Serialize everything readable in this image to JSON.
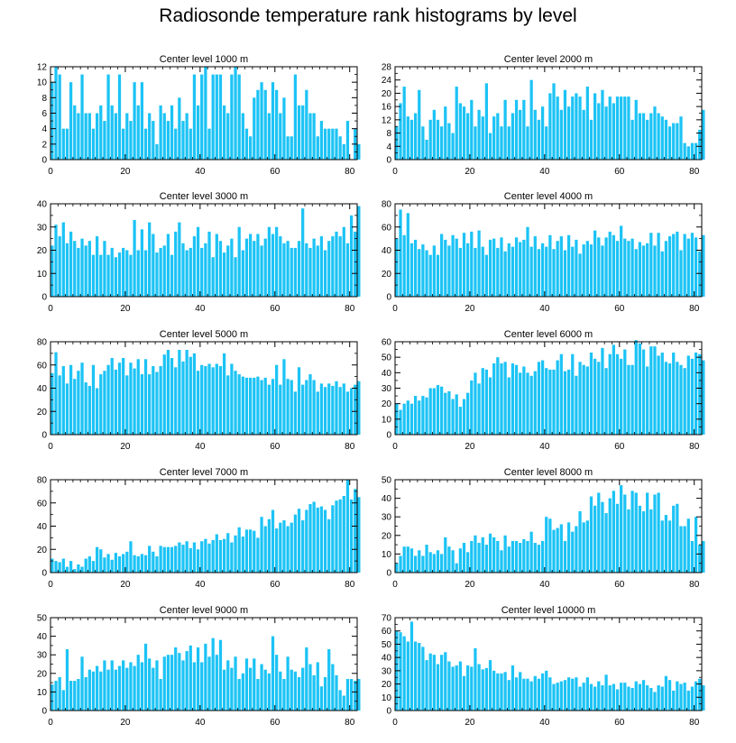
{
  "figure_title": "Radiosonde temperature rank histograms by level",
  "colors": {
    "bar": "#1cc3f5",
    "axis": "#000000",
    "background": "#ffffff"
  },
  "chart_data": [
    {
      "type": "bar",
      "title": "Center level 1000 m",
      "xlabel": "",
      "ylabel": "",
      "xlim": [
        0,
        82
      ],
      "ylim": [
        0,
        12
      ],
      "xticks": [
        0,
        20,
        40,
        60,
        80
      ],
      "yticks": [
        0,
        2,
        4,
        6,
        8,
        10,
        12
      ],
      "values": [
        10,
        12,
        11,
        4,
        4,
        10,
        7,
        6,
        11,
        6,
        6,
        4,
        6,
        7,
        5,
        11,
        7,
        6,
        11,
        4,
        6,
        5,
        10,
        7,
        10,
        4,
        6,
        5,
        2,
        7,
        6,
        5,
        7,
        4,
        8,
        5,
        6,
        4,
        11,
        7,
        11,
        12,
        4,
        11,
        11,
        11,
        7,
        6,
        11,
        12,
        11,
        6,
        4,
        3,
        8,
        9,
        10,
        9,
        6,
        10,
        9,
        6,
        8,
        3,
        3,
        11,
        7,
        7,
        9,
        6,
        6,
        3,
        5,
        4,
        4,
        4,
        4,
        3,
        2,
        5,
        0,
        4,
        2
      ]
    },
    {
      "type": "bar",
      "title": "Center level 2000 m",
      "xlabel": "",
      "ylabel": "",
      "xlim": [
        0,
        82
      ],
      "ylim": [
        0,
        28
      ],
      "xticks": [
        0,
        20,
        40,
        60,
        80
      ],
      "yticks": [
        0,
        4,
        8,
        12,
        16,
        20,
        24,
        28
      ],
      "values": [
        10,
        17,
        22,
        13,
        12,
        14,
        21,
        10,
        6,
        12,
        15,
        12,
        10,
        16,
        11,
        8,
        22,
        17,
        16,
        14,
        18,
        10,
        15,
        13,
        23,
        8,
        13,
        14,
        10,
        18,
        10,
        14,
        18,
        15,
        18,
        10,
        24,
        15,
        12,
        16,
        10,
        20,
        23,
        19,
        15,
        21,
        16,
        19,
        20,
        19,
        15,
        22,
        12,
        20,
        17,
        21,
        16,
        19,
        17,
        19,
        19,
        19,
        19,
        12,
        18,
        14,
        14,
        12,
        14,
        16,
        14,
        13,
        12,
        10,
        11,
        11,
        13,
        5,
        4,
        5,
        5,
        9,
        15
      ]
    },
    {
      "type": "bar",
      "title": "Center level 3000 m",
      "xlabel": "",
      "ylabel": "",
      "xlim": [
        0,
        82
      ],
      "ylim": [
        0,
        40
      ],
      "xticks": [
        0,
        20,
        40,
        60,
        80
      ],
      "yticks": [
        0,
        10,
        20,
        30,
        40
      ],
      "values": [
        22,
        31,
        26,
        32,
        23,
        28,
        24,
        21,
        25,
        22,
        24,
        18,
        26,
        18,
        24,
        18,
        21,
        17,
        19,
        21,
        20,
        18,
        33,
        20,
        29,
        20,
        32,
        27,
        19,
        21,
        22,
        27,
        18,
        28,
        32,
        23,
        20,
        21,
        26,
        30,
        21,
        23,
        28,
        17,
        27,
        24,
        19,
        22,
        25,
        17,
        30,
        20,
        25,
        27,
        24,
        27,
        22,
        25,
        30,
        27,
        30,
        26,
        23,
        24,
        21,
        21,
        24,
        38,
        23,
        21,
        25,
        22,
        26,
        20,
        24,
        26,
        28,
        26,
        30,
        23,
        35,
        28,
        39
      ]
    },
    {
      "type": "bar",
      "title": "Center level 4000 m",
      "xlabel": "",
      "ylabel": "",
      "xlim": [
        0,
        82
      ],
      "ylim": [
        0,
        80
      ],
      "xticks": [
        0,
        20,
        40,
        60,
        80
      ],
      "yticks": [
        0,
        20,
        40,
        60,
        80
      ],
      "values": [
        50,
        75,
        53,
        72,
        46,
        49,
        41,
        45,
        40,
        36,
        44,
        36,
        54,
        49,
        44,
        53,
        50,
        42,
        55,
        46,
        56,
        42,
        57,
        43,
        36,
        49,
        50,
        42,
        51,
        39,
        46,
        43,
        51,
        47,
        49,
        60,
        43,
        52,
        41,
        46,
        43,
        53,
        41,
        48,
        52,
        40,
        53,
        43,
        49,
        37,
        45,
        48,
        45,
        57,
        51,
        44,
        51,
        56,
        53,
        48,
        61,
        50,
        48,
        50,
        41,
        47,
        44,
        46,
        55,
        44,
        55,
        39,
        48,
        52,
        54,
        56,
        40,
        54,
        50,
        55,
        51,
        39,
        53
      ]
    },
    {
      "type": "bar",
      "title": "Center level 5000 m",
      "xlabel": "",
      "ylabel": "",
      "xlim": [
        0,
        82
      ],
      "ylim": [
        0,
        80
      ],
      "xticks": [
        0,
        20,
        40,
        60,
        80
      ],
      "yticks": [
        0,
        20,
        40,
        60,
        80
      ],
      "values": [
        53,
        71,
        51,
        59,
        44,
        60,
        48,
        55,
        62,
        45,
        42,
        60,
        40,
        52,
        55,
        60,
        66,
        56,
        62,
        66,
        51,
        62,
        57,
        65,
        52,
        65,
        52,
        59,
        54,
        59,
        69,
        73,
        66,
        58,
        73,
        63,
        73,
        67,
        70,
        55,
        60,
        59,
        61,
        58,
        61,
        59,
        70,
        51,
        61,
        55,
        52,
        50,
        49,
        49,
        49,
        50,
        47,
        49,
        43,
        48,
        60,
        43,
        65,
        48,
        47,
        37,
        58,
        43,
        47,
        52,
        47,
        37,
        44,
        41,
        44,
        42,
        46,
        41,
        44,
        37,
        40,
        43,
        46
      ]
    },
    {
      "type": "bar",
      "title": "Center level 6000 m",
      "xlabel": "",
      "ylabel": "",
      "xlim": [
        0,
        82
      ],
      "ylim": [
        0,
        60
      ],
      "xticks": [
        0,
        20,
        40,
        60,
        80
      ],
      "yticks": [
        0,
        10,
        20,
        30,
        40,
        50,
        60
      ],
      "values": [
        20,
        16,
        20,
        22,
        20,
        25,
        22,
        25,
        24,
        30,
        30,
        32,
        31,
        27,
        28,
        23,
        26,
        18,
        23,
        27,
        35,
        40,
        33,
        43,
        42,
        37,
        46,
        50,
        46,
        47,
        37,
        46,
        45,
        40,
        44,
        40,
        38,
        41,
        47,
        48,
        43,
        42,
        42,
        48,
        52,
        41,
        42,
        52,
        38,
        47,
        45,
        44,
        53,
        49,
        47,
        56,
        43,
        52,
        58,
        52,
        49,
        55,
        45,
        45,
        61,
        59,
        55,
        44,
        57,
        57,
        51,
        53,
        47,
        46,
        53,
        47,
        45,
        43,
        51,
        49,
        53,
        52,
        48
      ]
    },
    {
      "type": "bar",
      "title": "Center level 7000 m",
      "xlabel": "",
      "ylabel": "",
      "xlim": [
        0,
        82
      ],
      "ylim": [
        0,
        80
      ],
      "xticks": [
        0,
        20,
        40,
        60,
        80
      ],
      "yticks": [
        0,
        20,
        40,
        60,
        80
      ],
      "values": [
        12,
        10,
        9,
        12,
        5,
        10,
        3,
        7,
        5,
        12,
        14,
        10,
        22,
        20,
        13,
        16,
        11,
        17,
        14,
        16,
        18,
        27,
        15,
        14,
        16,
        15,
        23,
        18,
        14,
        23,
        22,
        22,
        22,
        23,
        26,
        24,
        27,
        21,
        26,
        20,
        27,
        29,
        25,
        28,
        33,
        28,
        29,
        34,
        26,
        32,
        39,
        31,
        37,
        37,
        36,
        30,
        48,
        40,
        46,
        54,
        38,
        43,
        45,
        40,
        43,
        50,
        55,
        45,
        54,
        59,
        61,
        56,
        57,
        54,
        46,
        58,
        62,
        63,
        66,
        80,
        63,
        72,
        65
      ]
    },
    {
      "type": "bar",
      "title": "Center level 8000 m",
      "xlabel": "",
      "ylabel": "",
      "xlim": [
        0,
        82
      ],
      "ylim": [
        0,
        50
      ],
      "xticks": [
        0,
        20,
        40,
        60,
        80
      ],
      "yticks": [
        0,
        10,
        20,
        30,
        40,
        50
      ],
      "values": [
        5,
        9,
        14,
        14,
        13,
        9,
        12,
        9,
        15,
        11,
        10,
        12,
        10,
        19,
        14,
        12,
        5,
        13,
        16,
        11,
        17,
        20,
        16,
        19,
        15,
        21,
        19,
        17,
        12,
        20,
        14,
        17,
        17,
        16,
        18,
        17,
        22,
        16,
        15,
        17,
        30,
        29,
        23,
        24,
        26,
        17,
        27,
        22,
        25,
        33,
        27,
        28,
        41,
        36,
        43,
        38,
        32,
        40,
        44,
        37,
        47,
        42,
        34,
        44,
        43,
        36,
        33,
        43,
        34,
        42,
        43,
        28,
        31,
        28,
        36,
        37,
        25,
        25,
        29,
        17,
        30,
        15,
        17
      ]
    },
    {
      "type": "bar",
      "title": "Center level 9000 m",
      "xlabel": "",
      "ylabel": "",
      "xlim": [
        0,
        82
      ],
      "ylim": [
        0,
        50
      ],
      "xticks": [
        0,
        20,
        40,
        60,
        80
      ],
      "yticks": [
        0,
        10,
        20,
        30,
        40,
        50
      ],
      "values": [
        14,
        16,
        18,
        11,
        33,
        16,
        16,
        17,
        29,
        18,
        22,
        21,
        24,
        21,
        27,
        22,
        27,
        22,
        24,
        27,
        23,
        26,
        24,
        30,
        26,
        36,
        28,
        23,
        27,
        17,
        29,
        30,
        30,
        34,
        31,
        27,
        32,
        35,
        26,
        34,
        26,
        36,
        29,
        39,
        30,
        38,
        22,
        27,
        23,
        29,
        17,
        20,
        28,
        23,
        28,
        17,
        25,
        22,
        20,
        40,
        30,
        21,
        17,
        29,
        22,
        21,
        18,
        23,
        34,
        25,
        19,
        26,
        13,
        18,
        33,
        25,
        19,
        11,
        8,
        17,
        17,
        16,
        17
      ]
    },
    {
      "type": "bar",
      "title": "Center level 10000 m",
      "xlabel": "",
      "ylabel": "",
      "xlim": [
        0,
        82
      ],
      "ylim": [
        0,
        70
      ],
      "xticks": [
        0,
        20,
        40,
        60,
        80
      ],
      "yticks": [
        0,
        10,
        20,
        30,
        40,
        50,
        60,
        70
      ],
      "values": [
        60,
        59,
        56,
        52,
        67,
        52,
        51,
        48,
        38,
        43,
        42,
        35,
        42,
        44,
        37,
        33,
        34,
        37,
        26,
        34,
        33,
        47,
        35,
        31,
        32,
        38,
        30,
        28,
        28,
        29,
        23,
        34,
        25,
        29,
        24,
        24,
        22,
        26,
        24,
        28,
        30,
        25,
        20,
        21,
        22,
        23,
        25,
        24,
        25,
        18,
        21,
        25,
        20,
        18,
        22,
        19,
        27,
        19,
        20,
        16,
        21,
        21,
        18,
        17,
        22,
        20,
        23,
        19,
        17,
        14,
        19,
        18,
        26,
        23,
        15,
        22,
        20,
        21,
        15,
        18,
        22,
        24,
        19
      ]
    }
  ]
}
